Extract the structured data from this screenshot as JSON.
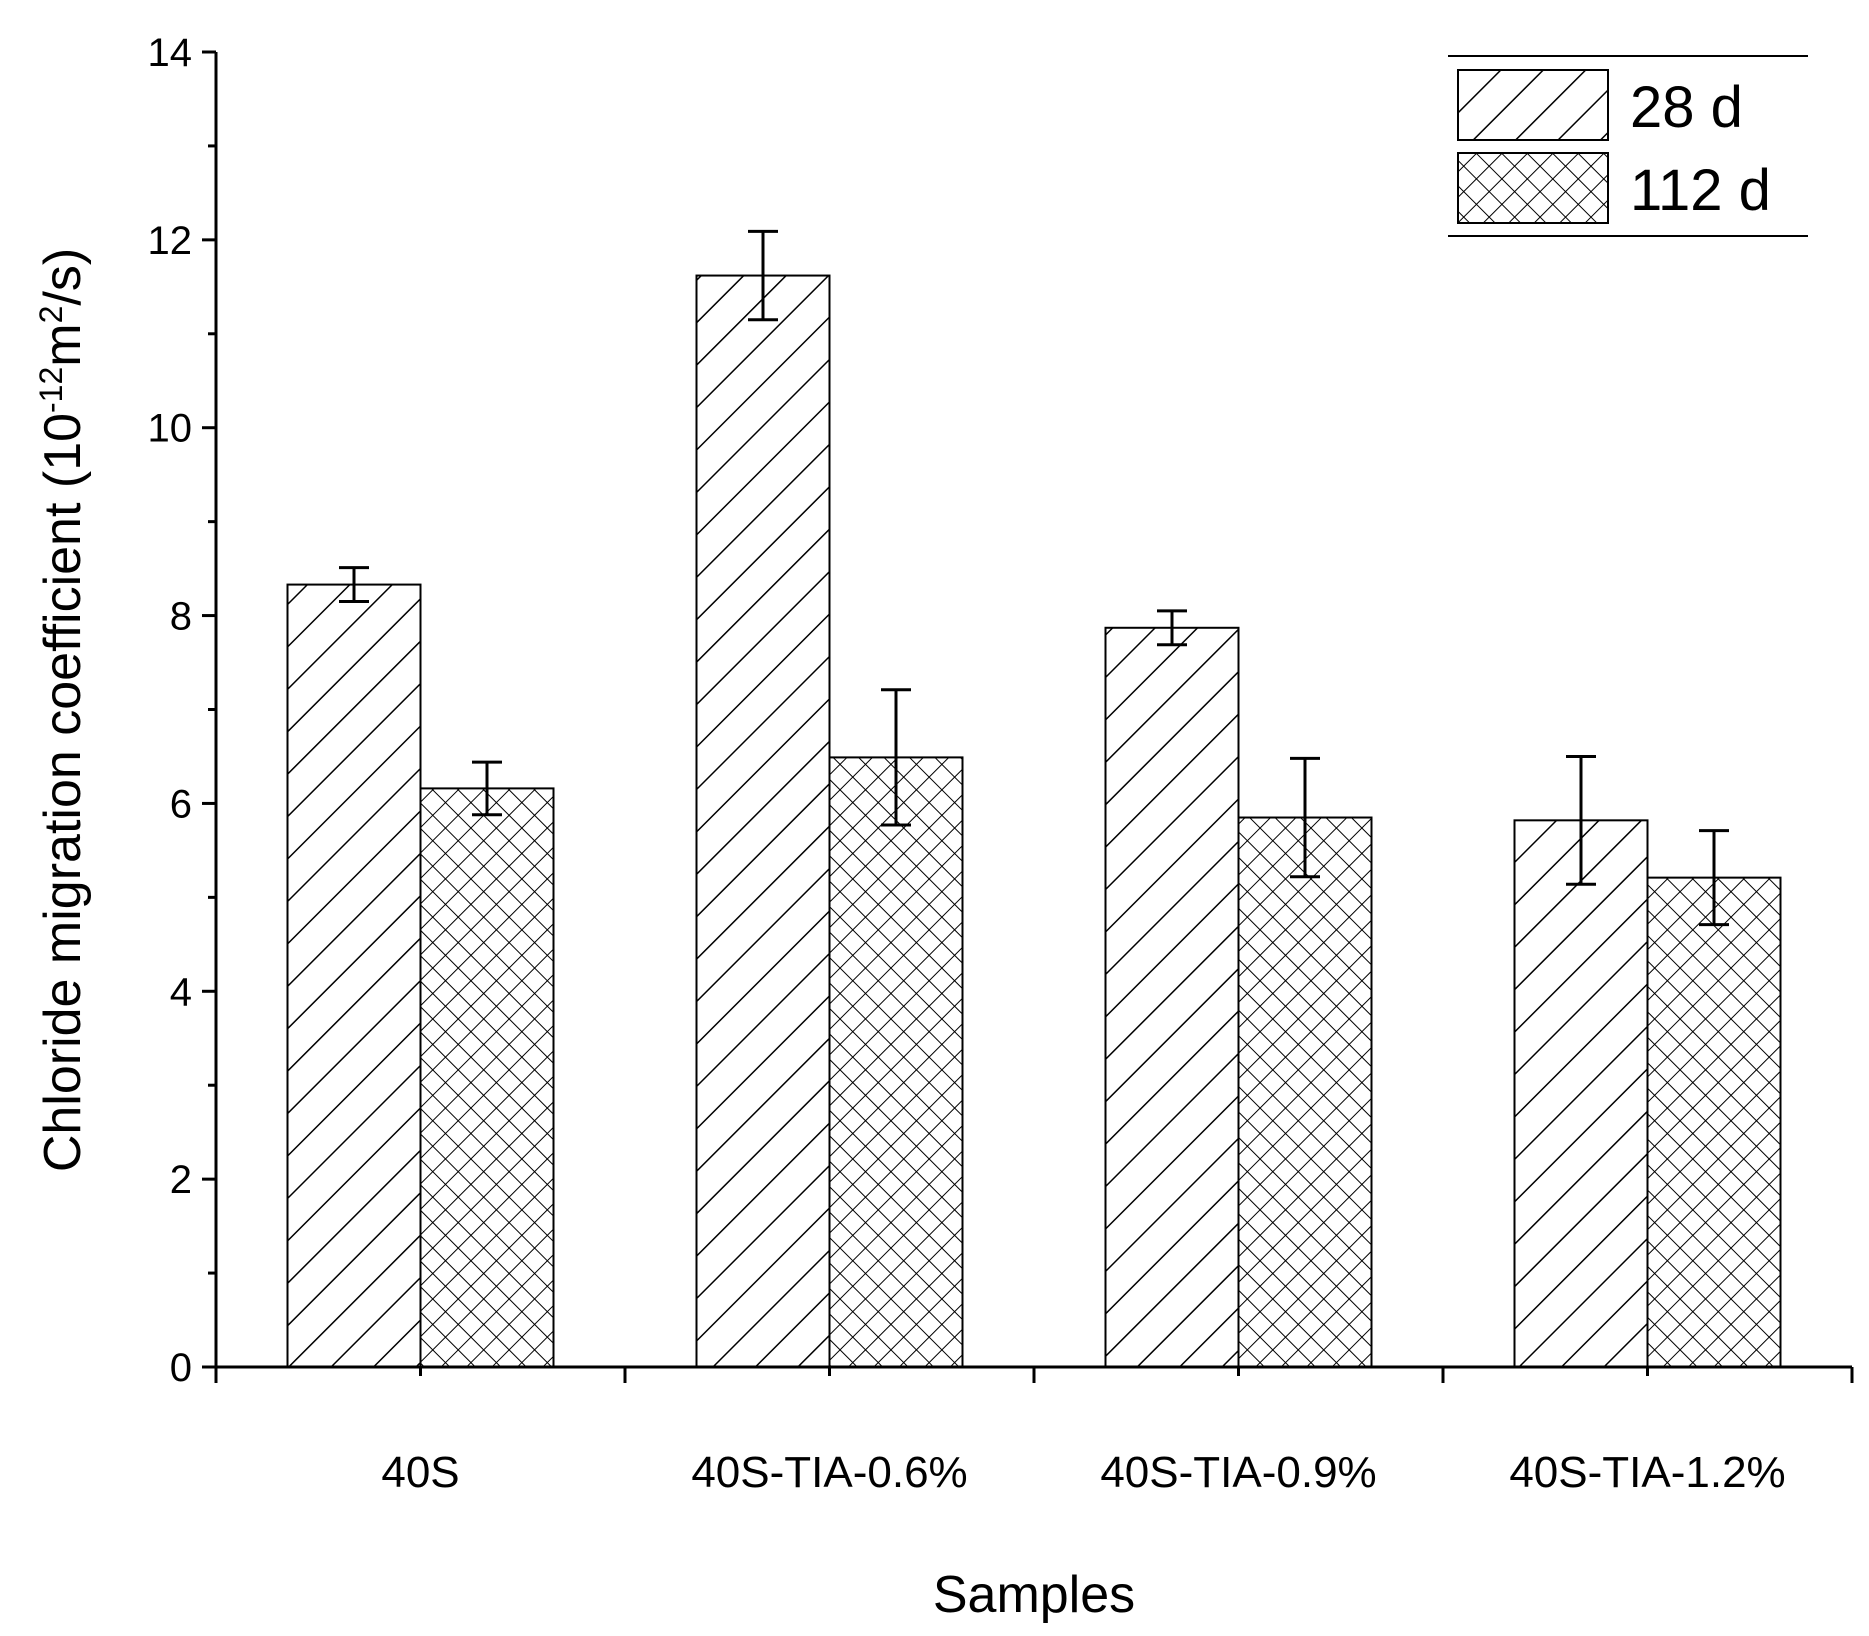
{
  "chart_data": {
    "type": "bar",
    "xlabel": "Samples",
    "ylabel": "Chloride migration coefficient (10",
    "ylabel_sup1": "-12",
    "ylabel_mid": "m",
    "ylabel_sup2": "2",
    "ylabel_end": "/s)",
    "ylim": [
      0,
      14
    ],
    "yticks": [
      0,
      2,
      4,
      6,
      8,
      10,
      12,
      14
    ],
    "categories": [
      "40S",
      "40S-TIA-0.6%",
      "40S-TIA-0.9%",
      "40S-TIA-1.2%"
    ],
    "series": [
      {
        "name": "28 d",
        "pattern": "diagonal-hatch",
        "values": [
          8.33,
          11.62,
          7.87,
          5.82
        ],
        "errors": [
          0.18,
          0.47,
          0.18,
          0.68
        ]
      },
      {
        "name": "112 d",
        "pattern": "cross-hatch",
        "values": [
          6.16,
          6.49,
          5.85,
          5.21
        ],
        "errors": [
          0.28,
          0.72,
          0.63,
          0.5
        ]
      }
    ],
    "legend_position": "top-right",
    "grid": false
  }
}
